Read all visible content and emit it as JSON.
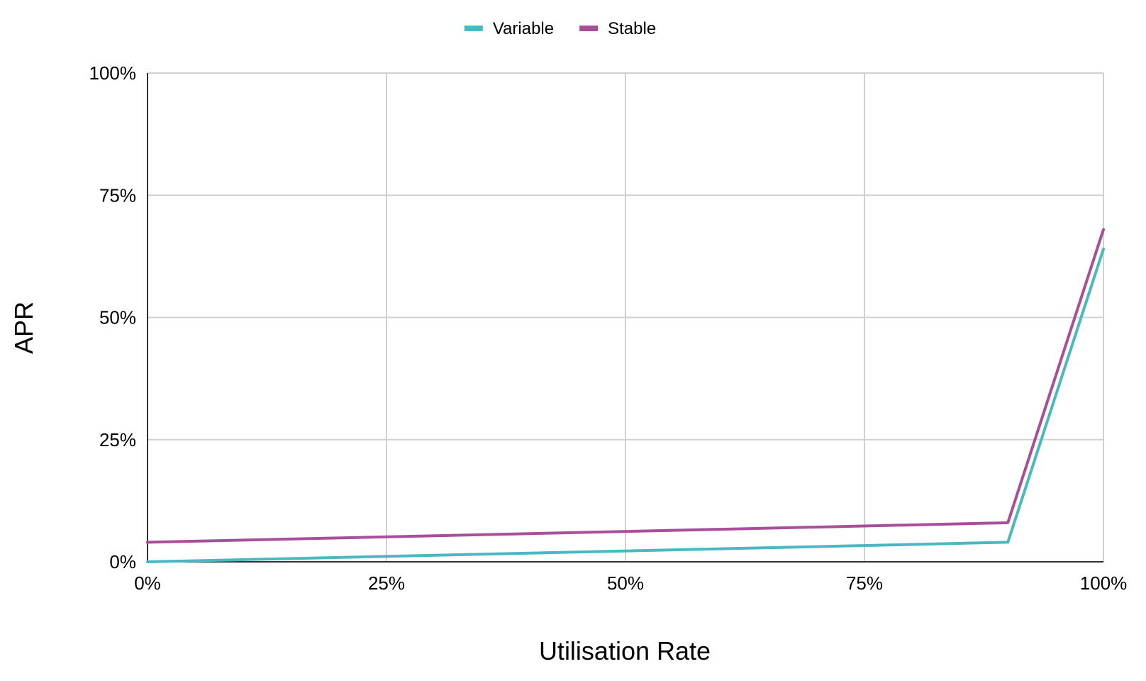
{
  "chart_data": {
    "type": "line",
    "title": "",
    "xlabel": "Utilisation Rate",
    "ylabel": "APR",
    "xlim": [
      0,
      100
    ],
    "ylim": [
      0,
      100
    ],
    "x_ticks": [
      "0%",
      "25%",
      "50%",
      "75%",
      "100%"
    ],
    "y_ticks": [
      "0%",
      "25%",
      "50%",
      "75%",
      "100%"
    ],
    "grid": true,
    "legend_position": "top-center",
    "series": [
      {
        "name": "Variable",
        "color": "#4ab8c1",
        "x": [
          0,
          90,
          100
        ],
        "y": [
          0,
          4,
          64
        ]
      },
      {
        "name": "Stable",
        "color": "#a94f9a",
        "x": [
          0,
          90,
          100
        ],
        "y": [
          4,
          8,
          68
        ]
      }
    ]
  }
}
